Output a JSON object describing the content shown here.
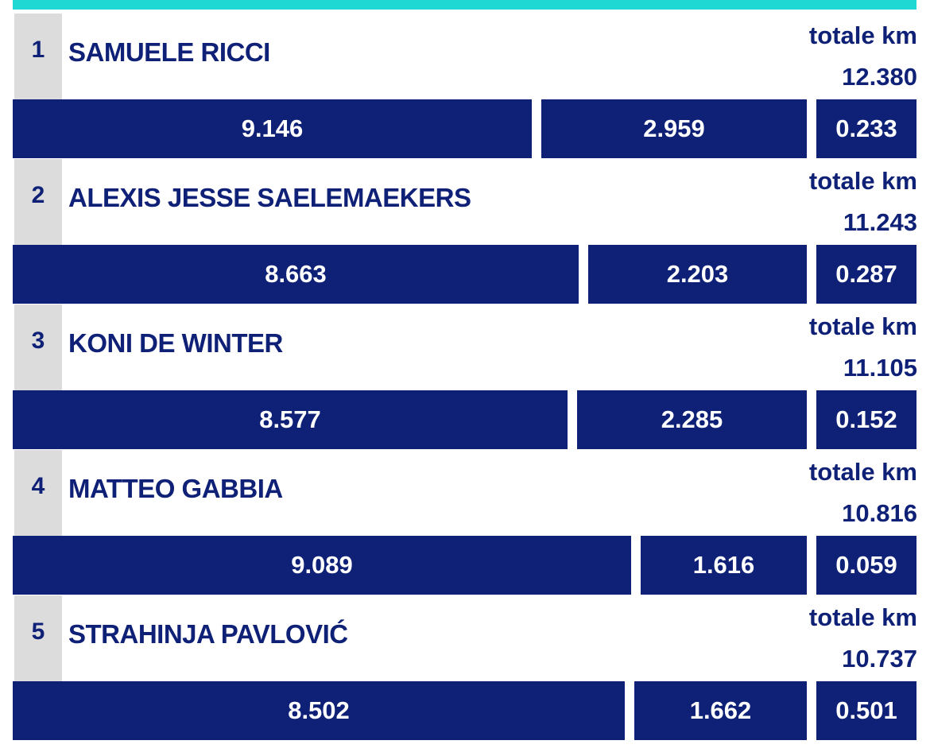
{
  "theme": {
    "accent": "#20d8d3",
    "bar_color": "#0f2077",
    "text_color": "#0f2077",
    "rank_bg": "#dcdcdc"
  },
  "total_label": "totale km",
  "chart_data": {
    "type": "bar",
    "stacked": true,
    "orientation": "horizontal",
    "categories": [
      "SAMUELE RICCI",
      "ALEXIS JESSE SAELEMAEKERS",
      "KONI DE WINTER",
      "MATTEO GABBIA",
      "STRAHINJA PAVLOVIĆ"
    ],
    "series": [
      {
        "values": [
          9.146,
          8.663,
          8.577,
          9.089,
          8.502
        ]
      },
      {
        "values": [
          2.959,
          2.203,
          2.285,
          1.616,
          1.662
        ]
      },
      {
        "values": [
          0.233,
          0.287,
          0.152,
          0.059,
          0.501
        ]
      }
    ],
    "totals": [
      12.38,
      11.243,
      11.105,
      10.816,
      10.737
    ]
  },
  "players": [
    {
      "rank": "1",
      "name": "SAMUELE RICCI",
      "total": "12.380",
      "segments": [
        "9.146",
        "2.959",
        "0.233"
      ]
    },
    {
      "rank": "2",
      "name": "ALEXIS JESSE SAELEMAEKERS",
      "total": "11.243",
      "segments": [
        "8.663",
        "2.203",
        "0.287"
      ]
    },
    {
      "rank": "3",
      "name": "KONI DE WINTER",
      "total": "11.105",
      "segments": [
        "8.577",
        "2.285",
        "0.152"
      ]
    },
    {
      "rank": "4",
      "name": "MATTEO GABBIA",
      "total": "10.816",
      "segments": [
        "9.089",
        "1.616",
        "0.059"
      ]
    },
    {
      "rank": "5",
      "name": "STRAHINJA PAVLOVIĆ",
      "total": "10.737",
      "segments": [
        "8.502",
        "1.662",
        "0.501"
      ]
    }
  ]
}
